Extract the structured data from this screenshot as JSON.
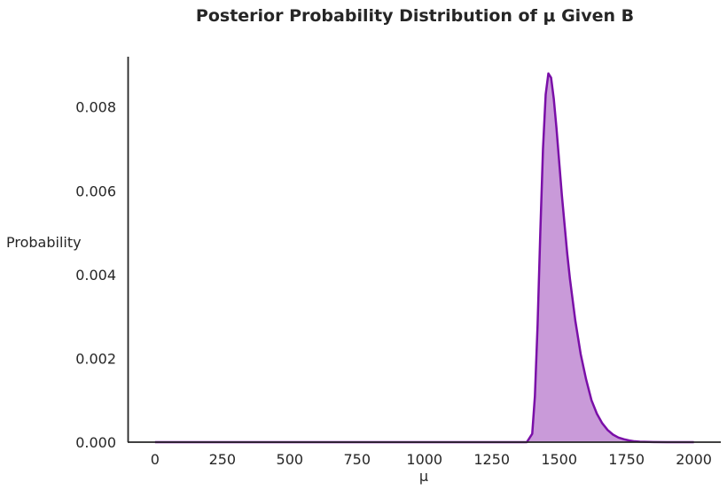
{
  "chart_data": {
    "type": "area",
    "title": "Posterior Probability Distribution of μ Given B",
    "xlabel": "μ",
    "ylabel": "Probability",
    "xlim": [
      -100,
      2100
    ],
    "ylim": [
      0,
      0.0092
    ],
    "x_ticks": [
      "0",
      "250",
      "500",
      "750",
      "1000",
      "1250",
      "1500",
      "1750",
      "2000"
    ],
    "x_tick_values": [
      0,
      250,
      500,
      750,
      1000,
      1250,
      1500,
      1750,
      2000
    ],
    "y_ticks": [
      "0.000",
      "0.002",
      "0.004",
      "0.006",
      "0.008"
    ],
    "y_tick_values": [
      0,
      0.002,
      0.004,
      0.006,
      0.008
    ],
    "grid": false,
    "series": [
      {
        "line_color": "#7a0fa8",
        "fill_color": "#c99ad9",
        "x": [
          0,
          250,
          500,
          750,
          1000,
          1250,
          1380,
          1400,
          1410,
          1420,
          1430,
          1440,
          1450,
          1460,
          1470,
          1480,
          1490,
          1500,
          1510,
          1520,
          1530,
          1540,
          1550,
          1560,
          1570,
          1580,
          1600,
          1620,
          1640,
          1660,
          1680,
          1700,
          1720,
          1740,
          1760,
          1780,
          1800,
          1850,
          1900,
          2000
        ],
        "y": [
          0,
          0,
          0,
          0,
          0,
          0,
          0,
          0.0002,
          0.0011,
          0.0028,
          0.005,
          0.007,
          0.0083,
          0.0088,
          0.0087,
          0.0082,
          0.0075,
          0.0067,
          0.0059,
          0.0052,
          0.0045,
          0.0039,
          0.0034,
          0.0029,
          0.0025,
          0.0021,
          0.0015,
          0.001,
          0.00068,
          0.00045,
          0.00029,
          0.00018,
          0.00011,
          7e-05,
          4e-05,
          2e-05,
          1e-05,
          2e-06,
          0,
          0
        ]
      }
    ]
  }
}
